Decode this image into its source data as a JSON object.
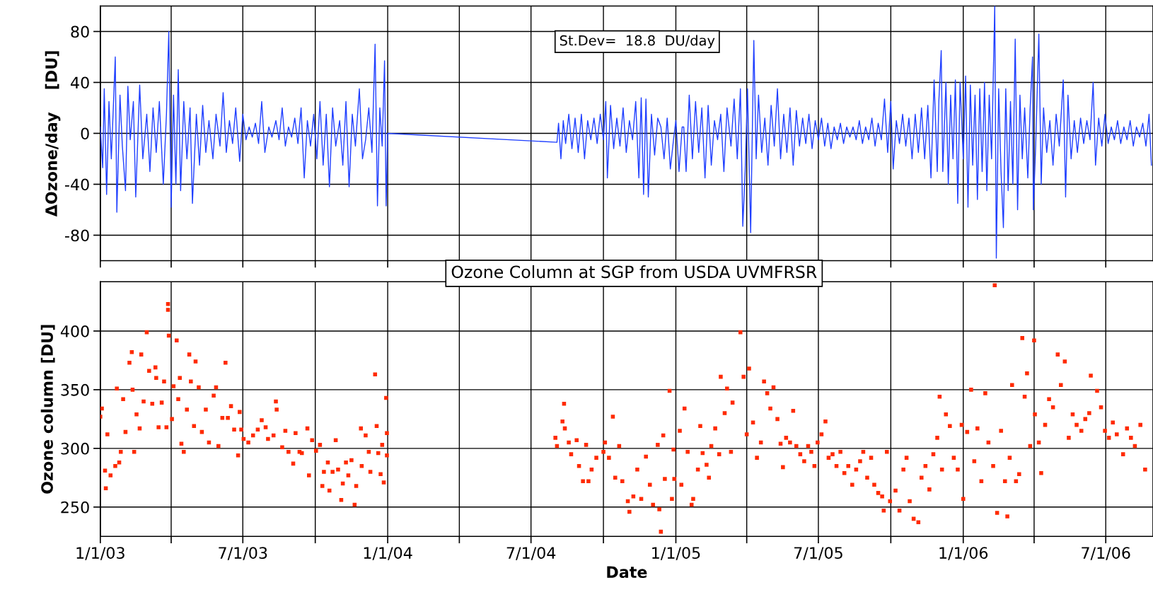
{
  "chart_data": [
    {
      "type": "line",
      "ylabel": "ΔOzone/day    [DU]",
      "annotations": [
        "St.Dev=  18.8  DU/day"
      ],
      "grid": true,
      "tick_labels": "y",
      "legend": false,
      "marker": "none",
      "line_style": "solid",
      "xlim": [
        "2003-01-01",
        "2006-08-30"
      ],
      "xticks": [
        {
          "value": "2003-01-01",
          "label": null
        },
        {
          "value": "2003-04-01",
          "label": null
        },
        {
          "value": "2003-07-01",
          "label": null
        },
        {
          "value": "2003-10-01",
          "label": null
        },
        {
          "value": "2004-01-01",
          "label": null
        },
        {
          "value": "2004-04-01",
          "label": null
        },
        {
          "value": "2004-07-01",
          "label": null
        },
        {
          "value": "2004-10-01",
          "label": null
        },
        {
          "value": "2005-01-01",
          "label": null
        },
        {
          "value": "2005-04-01",
          "label": null
        },
        {
          "value": "2005-07-01",
          "label": null
        },
        {
          "value": "2005-10-01",
          "label": null
        },
        {
          "value": "2006-01-01",
          "label": null
        },
        {
          "value": "2006-04-01",
          "label": null
        },
        {
          "value": "2006-07-01",
          "label": null
        }
      ],
      "ylim": [
        -100,
        100
      ],
      "yticks": [
        -80,
        -40,
        0,
        40,
        80
      ],
      "series": [
        {
          "color": "#1f3fff",
          "x": [
            "2003-01-01",
            "2003-01-04",
            "2003-01-06",
            "2003-01-09",
            "2003-01-12",
            "2003-01-15",
            "2003-01-20",
            "2003-01-22",
            "2003-01-26",
            "2003-01-29",
            "2003-02-02",
            "2003-02-05",
            "2003-02-08",
            "2003-02-12",
            "2003-02-15",
            "2003-02-20",
            "2003-02-24",
            "2003-03-01",
            "2003-03-05",
            "2003-03-09",
            "2003-03-13",
            "2003-03-17",
            "2003-03-22",
            "2003-03-26",
            "2003-03-29",
            "2003-04-01",
            "2003-04-04",
            "2003-04-07",
            "2003-04-10",
            "2003-04-13",
            "2003-04-17",
            "2003-04-21",
            "2003-04-25",
            "2003-04-28",
            "2003-05-03",
            "2003-05-07",
            "2003-05-11",
            "2003-05-15",
            "2003-05-19",
            "2003-05-24",
            "2003-05-28",
            "2003-06-02",
            "2003-06-06",
            "2003-06-10",
            "2003-06-14",
            "2003-06-18",
            "2003-06-22",
            "2003-06-27",
            "2003-07-01",
            "2003-07-05",
            "2003-07-09",
            "2003-07-13",
            "2003-07-17",
            "2003-07-21",
            "2003-07-25",
            "2003-07-29",
            "2003-08-03",
            "2003-08-07",
            "2003-08-12",
            "2003-08-16",
            "2003-08-20",
            "2003-08-24",
            "2003-08-28",
            "2003-09-01",
            "2003-09-05",
            "2003-09-09",
            "2003-09-13",
            "2003-09-17",
            "2003-09-21",
            "2003-09-25",
            "2003-09-29",
            "2003-10-03",
            "2003-10-07",
            "2003-10-11",
            "2003-10-15",
            "2003-10-19",
            "2003-10-23",
            "2003-10-27",
            "2003-11-01",
            "2003-11-05",
            "2003-11-09",
            "2003-11-13",
            "2003-11-17",
            "2003-11-21",
            "2003-11-26",
            "2003-11-30",
            "2003-12-04",
            "2003-12-08",
            "2003-12-12",
            "2003-12-16",
            "2003-12-19",
            "2003-12-22",
            "2003-12-25",
            "2003-12-28",
            "2003-12-30",
            "2004-01-01",
            "2004-08-03",
            "2004-08-05",
            "2004-08-08",
            "2004-08-11",
            "2004-08-14",
            "2004-08-18",
            "2004-08-22",
            "2004-08-26",
            "2004-08-30",
            "2004-09-03",
            "2004-09-07",
            "2004-09-11",
            "2004-09-15",
            "2004-09-19",
            "2004-09-23",
            "2004-09-27",
            "2004-10-01",
            "2004-10-04",
            "2004-10-06",
            "2004-10-10",
            "2004-10-14",
            "2004-10-18",
            "2004-10-22",
            "2004-10-26",
            "2004-10-30",
            "2004-11-03",
            "2004-11-07",
            "2004-11-11",
            "2004-11-15",
            "2004-11-18",
            "2004-11-21",
            "2004-11-24",
            "2004-11-27",
            "2004-12-01",
            "2004-12-05",
            "2004-12-09",
            "2004-12-13",
            "2004-12-17",
            "2004-12-21",
            "2004-12-25",
            "2004-12-29",
            "2005-01-01",
            "2005-01-05",
            "2005-01-09",
            "2005-01-11",
            "2005-01-14",
            "2005-01-18",
            "2005-01-22",
            "2005-01-26",
            "2005-01-30",
            "2005-02-03",
            "2005-02-07",
            "2005-02-11",
            "2005-02-15",
            "2005-02-19",
            "2005-02-23",
            "2005-02-27",
            "2005-03-03",
            "2005-03-07",
            "2005-03-12",
            "2005-03-16",
            "2005-03-20",
            "2005-03-24",
            "2005-03-27",
            "2005-03-30",
            "2005-04-02",
            "2005-04-06",
            "2005-04-10",
            "2005-04-13",
            "2005-04-16",
            "2005-04-20",
            "2005-04-24",
            "2005-04-28",
            "2005-05-02",
            "2005-05-06",
            "2005-05-10",
            "2005-05-14",
            "2005-05-18",
            "2005-05-22",
            "2005-05-26",
            "2005-05-30",
            "2005-06-03",
            "2005-06-07",
            "2005-06-11",
            "2005-06-15",
            "2005-06-19",
            "2005-06-23",
            "2005-06-27",
            "2005-07-01",
            "2005-07-05",
            "2005-07-09",
            "2005-07-13",
            "2005-07-17",
            "2005-07-21",
            "2005-07-25",
            "2005-07-29",
            "2005-08-02",
            "2005-08-06",
            "2005-08-10",
            "2005-08-14",
            "2005-08-18",
            "2005-08-22",
            "2005-08-26",
            "2005-08-30",
            "2005-09-03",
            "2005-09-07",
            "2005-09-11",
            "2005-09-15",
            "2005-09-19",
            "2005-09-23",
            "2005-09-27",
            "2005-10-01",
            "2005-10-04",
            "2005-10-08",
            "2005-10-12",
            "2005-10-16",
            "2005-10-20",
            "2005-10-24",
            "2005-10-28",
            "2005-11-01",
            "2005-11-05",
            "2005-11-09",
            "2005-11-13",
            "2005-11-17",
            "2005-11-21",
            "2005-11-25",
            "2005-11-29",
            "2005-12-01",
            "2005-12-04",
            "2005-12-06",
            "2005-12-10",
            "2005-12-13",
            "2005-12-16",
            "2005-12-19",
            "2005-12-22",
            "2005-12-25",
            "2005-12-28",
            "2006-01-01",
            "2006-01-04",
            "2006-01-07",
            "2006-01-10",
            "2006-01-13",
            "2006-01-16",
            "2006-01-19",
            "2006-01-22",
            "2006-01-25",
            "2006-01-28",
            "2006-01-31",
            "2006-02-03",
            "2006-02-06",
            "2006-02-10",
            "2006-02-12",
            "2006-02-15",
            "2006-02-18",
            "2006-02-21",
            "2006-02-24",
            "2006-02-27",
            "2006-03-02",
            "2006-03-05",
            "2006-03-08",
            "2006-03-11",
            "2006-03-14",
            "2006-03-17",
            "2006-03-20",
            "2006-03-24",
            "2006-03-27",
            "2006-03-30",
            "2006-03-31",
            "2006-04-03",
            "2006-04-07",
            "2006-04-10",
            "2006-04-13",
            "2006-04-17",
            "2006-04-21",
            "2006-04-25",
            "2006-04-29",
            "2006-05-03",
            "2006-05-08",
            "2006-05-11",
            "2006-05-14",
            "2006-05-18",
            "2006-05-22",
            "2006-05-26",
            "2006-05-30",
            "2006-06-03",
            "2006-06-07",
            "2006-06-11",
            "2006-06-15",
            "2006-06-18",
            "2006-06-22",
            "2006-06-26",
            "2006-06-30",
            "2006-07-04",
            "2006-07-08",
            "2006-07-12",
            "2006-07-16",
            "2006-07-20",
            "2006-07-24",
            "2006-07-28",
            "2006-08-01",
            "2006-08-05",
            "2006-08-09",
            "2006-08-13",
            "2006-08-17",
            "2006-08-21",
            "2006-08-25",
            "2006-08-28"
          ],
          "values": [
            5,
            -27,
            35,
            -48,
            25,
            -20,
            60,
            -62,
            30,
            -10,
            -45,
            37,
            -5,
            25,
            -50,
            38,
            -20,
            15,
            -30,
            20,
            -15,
            25,
            -40,
            15,
            80,
            -58,
            30,
            -40,
            50,
            -45,
            25,
            -20,
            20,
            -55,
            15,
            -25,
            22,
            -15,
            10,
            -20,
            15,
            -10,
            32,
            -15,
            10,
            -8,
            20,
            -22,
            15,
            -5,
            5,
            -3,
            8,
            -8,
            25,
            -15,
            5,
            -3,
            10,
            -5,
            20,
            -10,
            5,
            -3,
            12,
            -8,
            20,
            -35,
            10,
            -10,
            15,
            -20,
            25,
            -25,
            15,
            -42,
            20,
            -10,
            10,
            -25,
            25,
            -42,
            15,
            -10,
            35,
            -20,
            -5,
            20,
            -15,
            70,
            -57,
            20,
            -10,
            57,
            -57,
            0,
            -7,
            8,
            -20,
            10,
            -8,
            15,
            -12,
            12,
            -15,
            15,
            -20,
            10,
            -5,
            12,
            -8,
            15,
            -5,
            25,
            -35,
            22,
            -12,
            12,
            -10,
            20,
            -15,
            10,
            -5,
            25,
            -35,
            28,
            -48,
            27,
            -50,
            15,
            -17,
            12,
            5,
            -20,
            12,
            -28,
            -5,
            10,
            -30,
            5,
            5,
            -30,
            30,
            -20,
            25,
            -15,
            20,
            -35,
            22,
            -25,
            10,
            -5,
            15,
            -30,
            20,
            -10,
            27,
            -20,
            35,
            -73,
            -30,
            35,
            -78,
            73,
            -20,
            30,
            -15,
            12,
            -25,
            22,
            -10,
            35,
            -20,
            15,
            -15,
            20,
            -25,
            18,
            -10,
            12,
            -8,
            15,
            -12,
            10,
            -5,
            12,
            -10,
            8,
            -12,
            5,
            -5,
            8,
            -8,
            5,
            -3,
            5,
            -5,
            10,
            -8,
            5,
            -5,
            12,
            -10,
            8,
            -5,
            27,
            -15,
            25,
            -28,
            10,
            -8,
            15,
            -10,
            12,
            -20,
            15,
            -15,
            20,
            -20,
            22,
            -35,
            42,
            -30,
            25,
            65,
            -30,
            40,
            -40,
            30,
            -20,
            42,
            -55,
            40,
            -20,
            45,
            -58,
            38,
            -25,
            30,
            -52,
            35,
            -30,
            40,
            -45,
            30,
            -20,
            100,
            -98,
            35,
            -30,
            -74,
            35,
            -45,
            25,
            -40,
            74,
            -60,
            30,
            -20,
            20,
            -35,
            20,
            60,
            -60,
            -10,
            78,
            -40,
            20,
            -15,
            10,
            -25,
            15,
            -10,
            42,
            -50,
            30,
            -20,
            10,
            -15,
            12,
            -8,
            10,
            -5,
            40,
            -25,
            12,
            -10,
            15,
            -8,
            5,
            -5,
            10,
            -8,
            5,
            -5,
            10,
            -10,
            5,
            -3,
            8,
            -10,
            15,
            -25
          ]
        }
      ]
    },
    {
      "type": "scatter",
      "title": "Ozone Column at SGP from USDA UVMFRSR",
      "xlabel": "Date",
      "ylabel": "Ozone column [DU]",
      "grid": true,
      "legend": false,
      "marker": "square",
      "xlim": [
        "2003-01-01",
        "2006-08-30"
      ],
      "xticks": [
        {
          "value": "2003-01-01",
          "label": "1/1/03"
        },
        {
          "value": "2003-04-01",
          "label": null
        },
        {
          "value": "2003-07-01",
          "label": "7/1/03"
        },
        {
          "value": "2003-10-01",
          "label": null
        },
        {
          "value": "2004-01-01",
          "label": "1/1/04"
        },
        {
          "value": "2004-04-01",
          "label": null
        },
        {
          "value": "2004-07-01",
          "label": "7/1/04"
        },
        {
          "value": "2004-10-01",
          "label": null
        },
        {
          "value": "2005-01-01",
          "label": "1/1/05"
        },
        {
          "value": "2005-04-01",
          "label": null
        },
        {
          "value": "2005-07-01",
          "label": "7/1/05"
        },
        {
          "value": "2005-10-01",
          "label": null
        },
        {
          "value": "2006-01-01",
          "label": "1/1/06"
        },
        {
          "value": "2006-04-01",
          "label": null
        },
        {
          "value": "2006-07-01",
          "label": "7/1/06"
        }
      ],
      "ylim": [
        225,
        442
      ],
      "yticks": [
        250,
        300,
        350,
        400
      ],
      "series": [
        {
          "color": "#ff2a00",
          "x": [
            "2003-01-01",
            "2003-01-03",
            "2003-01-08",
            "2003-01-07",
            "2003-01-14",
            "2003-01-10",
            "2003-01-20",
            "2003-01-22",
            "2003-01-25",
            "2003-01-27",
            "2003-01-30",
            "2003-02-02",
            "2003-02-07",
            "2003-02-10",
            "2003-02-11",
            "2003-02-13",
            "2003-02-16",
            "2003-02-20",
            "2003-02-22",
            "2003-02-25",
            "2003-03-01",
            "2003-03-04",
            "2003-03-08",
            "2003-03-12",
            "2003-03-13",
            "2003-03-16",
            "2003-03-20",
            "2003-03-23",
            "2003-03-26",
            "2003-03-28",
            "2003-03-28",
            "2003-03-29",
            "2003-04-02",
            "2003-04-04",
            "2003-04-08",
            "2003-04-10",
            "2003-04-12",
            "2003-04-14",
            "2003-04-17",
            "2003-04-21",
            "2003-04-24",
            "2003-04-26",
            "2003-04-30",
            "2003-05-02",
            "2003-05-06",
            "2003-05-10",
            "2003-05-15",
            "2003-05-19",
            "2003-05-25",
            "2003-05-28",
            "2003-05-31",
            "2003-06-05",
            "2003-06-09",
            "2003-06-12",
            "2003-06-16",
            "2003-06-20",
            "2003-06-25",
            "2003-06-27",
            "2003-06-29",
            "2003-07-02",
            "2003-07-08",
            "2003-07-14",
            "2003-07-20",
            "2003-07-25",
            "2003-07-30",
            "2003-08-02",
            "2003-08-09",
            "2003-08-12",
            "2003-08-13",
            "2003-08-20",
            "2003-08-24",
            "2003-08-28",
            "2003-09-03",
            "2003-09-06",
            "2003-09-11",
            "2003-09-14",
            "2003-09-21",
            "2003-09-23",
            "2003-09-27",
            "2003-10-02",
            "2003-10-07",
            "2003-10-10",
            "2003-10-12",
            "2003-10-17",
            "2003-10-19",
            "2003-10-23",
            "2003-10-27",
            "2003-10-30",
            "2003-11-03",
            "2003-11-05",
            "2003-11-09",
            "2003-11-12",
            "2003-11-16",
            "2003-11-20",
            "2003-11-22",
            "2003-11-28",
            "2003-11-29",
            "2003-12-04",
            "2003-12-08",
            "2003-12-10",
            "2003-12-16",
            "2003-12-18",
            "2003-12-20",
            "2003-12-23",
            "2003-12-25",
            "2003-12-27",
            "2003-12-30",
            "2003-12-31",
            "2003-12-31",
            "2004-08-01",
            "2004-08-03",
            "2004-08-12",
            "2004-08-10",
            "2004-08-13",
            "2004-08-18",
            "2004-08-21",
            "2004-08-28",
            "2004-08-31",
            "2004-09-05",
            "2004-09-09",
            "2004-09-12",
            "2004-09-16",
            "2004-09-22",
            "2004-10-01",
            "2004-10-03",
            "2004-10-08",
            "2004-10-13",
            "2004-10-16",
            "2004-10-21",
            "2004-10-25",
            "2004-11-01",
            "2004-11-03",
            "2004-11-08",
            "2004-11-13",
            "2004-11-18",
            "2004-11-24",
            "2004-11-29",
            "2004-12-03",
            "2004-12-09",
            "2004-12-11",
            "2004-12-13",
            "2004-12-16",
            "2004-12-18",
            "2004-12-24",
            "2004-12-27",
            "2004-12-29",
            "2004-12-30",
            "2005-01-06",
            "2005-01-08",
            "2005-01-12",
            "2005-01-16",
            "2005-01-21",
            "2005-01-23",
            "2005-01-29",
            "2005-02-01",
            "2005-02-04",
            "2005-02-09",
            "2005-02-12",
            "2005-02-15",
            "2005-02-20",
            "2005-02-25",
            "2005-02-27",
            "2005-03-04",
            "2005-03-07",
            "2005-03-12",
            "2005-03-14",
            "2005-03-24",
            "2005-03-28",
            "2005-04-01",
            "2005-04-04",
            "2005-04-09",
            "2005-04-14",
            "2005-04-19",
            "2005-04-23",
            "2005-04-27",
            "2005-05-01",
            "2005-05-05",
            "2005-05-10",
            "2005-05-14",
            "2005-05-17",
            "2005-05-21",
            "2005-05-26",
            "2005-05-30",
            "2005-06-03",
            "2005-06-08",
            "2005-06-13",
            "2005-06-18",
            "2005-06-22",
            "2005-06-26",
            "2005-06-30",
            "2005-07-05",
            "2005-07-10",
            "2005-07-14",
            "2005-07-19",
            "2005-07-24",
            "2005-07-29",
            "2005-08-03",
            "2005-08-08",
            "2005-08-13",
            "2005-08-18",
            "2005-08-23",
            "2005-08-27",
            "2005-09-01",
            "2005-09-06",
            "2005-09-10",
            "2005-09-15",
            "2005-09-20",
            "2005-09-22",
            "2005-09-26",
            "2005-09-30",
            "2005-10-07",
            "2005-10-12",
            "2005-10-17",
            "2005-10-21",
            "2005-10-25",
            "2005-10-30",
            "2005-11-05",
            "2005-11-09",
            "2005-11-14",
            "2005-11-19",
            "2005-11-24",
            "2005-11-29",
            "2005-12-02",
            "2005-12-05",
            "2005-12-10",
            "2005-12-15",
            "2005-12-20",
            "2005-12-25",
            "2005-12-30",
            "2006-01-01",
            "2006-01-06",
            "2006-01-11",
            "2006-01-15",
            "2006-01-19",
            "2006-01-24",
            "2006-01-29",
            "2006-02-02",
            "2006-02-10",
            "2006-02-08",
            "2006-02-13",
            "2006-02-18",
            "2006-02-23",
            "2006-02-26",
            "2006-03-01",
            "2006-03-04",
            "2006-03-09",
            "2006-03-13",
            "2006-03-17",
            "2006-03-20",
            "2006-03-23",
            "2006-03-27",
            "2006-04-01",
            "2006-04-02",
            "2006-04-07",
            "2006-04-10",
            "2006-04-15",
            "2006-04-20",
            "2006-04-25",
            "2006-05-01",
            "2006-05-05",
            "2006-05-10",
            "2006-05-15",
            "2006-05-20",
            "2006-05-25",
            "2006-05-31",
            "2006-06-05",
            "2006-06-10",
            "2006-06-12",
            "2006-06-20",
            "2006-06-25",
            "2006-06-30",
            "2006-07-05",
            "2006-07-10",
            "2006-07-15",
            "2006-07-23",
            "2006-07-28",
            "2006-08-02",
            "2006-08-07",
            "2006-08-14",
            "2006-08-20"
          ],
          "values": [
            327,
            334,
            266,
            281,
            277,
            312,
            285,
            351,
            288,
            297,
            342,
            314,
            373,
            382,
            350,
            297,
            329,
            317,
            380,
            340,
            399,
            366,
            338,
            369,
            360,
            318,
            339,
            357,
            318,
            423,
            418,
            396,
            325,
            353,
            392,
            342,
            360,
            304,
            297,
            333,
            380,
            357,
            319,
            374,
            352,
            314,
            333,
            305,
            345,
            352,
            302,
            326,
            373,
            326,
            336,
            316,
            294,
            331,
            316,
            308,
            305,
            311,
            316,
            324,
            318,
            308,
            311,
            340,
            333,
            301,
            315,
            297,
            287,
            313,
            297,
            296,
            317,
            277,
            307,
            298,
            303,
            268,
            280,
            288,
            264,
            280,
            307,
            282,
            256,
            270,
            288,
            277,
            290,
            252,
            268,
            317,
            285,
            311,
            297,
            280,
            363,
            319,
            296,
            278,
            303,
            271,
            343,
            294,
            313,
            309,
            302,
            338,
            323,
            317,
            305,
            295,
            307,
            285,
            272,
            303,
            272,
            282,
            292,
            297,
            305,
            292,
            327,
            275,
            302,
            272,
            255,
            246,
            259,
            282,
            257,
            293,
            269,
            252,
            303,
            248,
            229,
            311,
            274,
            349,
            257,
            299,
            274,
            315,
            269,
            334,
            297,
            252,
            257,
            282,
            319,
            296,
            286,
            275,
            302,
            317,
            295,
            361,
            330,
            351,
            297,
            339,
            399,
            361,
            312,
            368,
            322,
            292,
            305,
            357,
            347,
            334,
            352,
            325,
            304,
            284,
            309,
            305,
            332,
            302,
            295,
            289,
            302,
            297,
            285,
            305,
            312,
            323,
            292,
            295,
            285,
            297,
            279,
            285,
            269,
            282,
            289,
            297,
            275,
            292,
            269,
            262,
            259,
            247,
            297,
            255,
            264,
            247,
            282,
            292,
            255,
            240,
            237,
            275,
            285,
            265,
            295,
            309,
            344,
            282,
            329,
            319,
            292,
            282,
            320,
            257,
            314,
            350,
            289,
            317,
            272,
            347,
            305,
            439,
            285,
            245,
            315,
            272,
            242,
            292,
            354,
            272,
            278,
            394,
            344,
            364,
            302,
            392,
            329,
            305,
            279,
            320,
            342,
            335,
            380,
            354,
            374,
            309,
            329,
            320,
            315,
            325,
            330,
            362,
            349,
            335,
            315,
            309,
            322,
            312,
            295,
            317,
            309,
            302,
            320,
            282
          ]
        }
      ]
    }
  ]
}
